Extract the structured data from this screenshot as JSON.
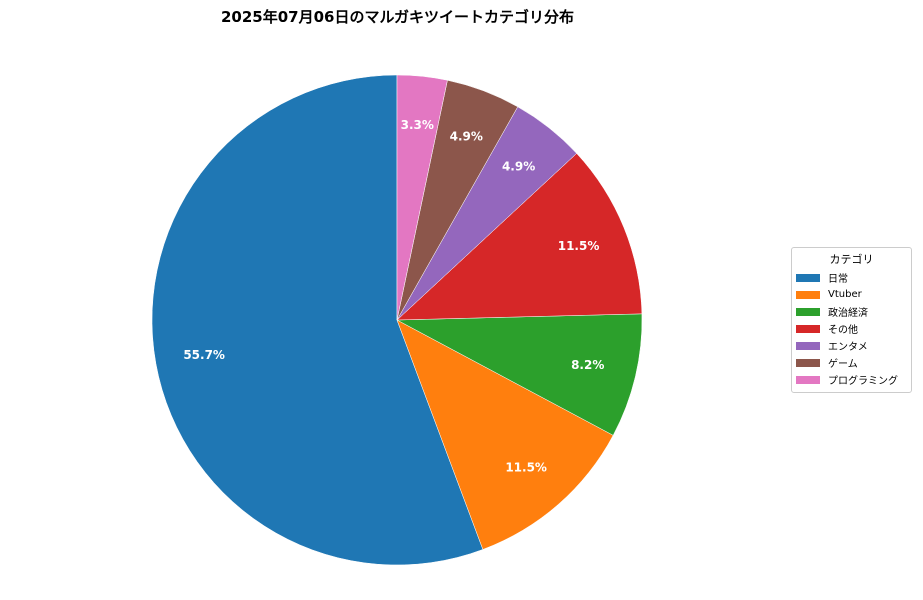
{
  "chart_data": {
    "type": "pie",
    "title": "2025年07月06日のマルガキツイートカテゴリ分布",
    "start_angle_deg": 90,
    "direction": "counterclockwise",
    "legend_title": "カテゴリ",
    "legend_placement": "right",
    "categories": [
      "日常",
      "Vtuber",
      "政治経済",
      "その他",
      "エンタメ",
      "ゲーム",
      "プログラミング"
    ],
    "values": [
      55.7,
      11.5,
      8.2,
      11.5,
      4.9,
      4.9,
      3.3
    ],
    "labels": [
      "55.7%",
      "11.5%",
      "8.2%",
      "11.5%",
      "4.9%",
      "4.9%",
      "3.3%"
    ],
    "colors": [
      "#1f77b4",
      "#ff7f0e",
      "#2ca02c",
      "#d62728",
      "#9467bd",
      "#8c564b",
      "#e377c2"
    ]
  }
}
